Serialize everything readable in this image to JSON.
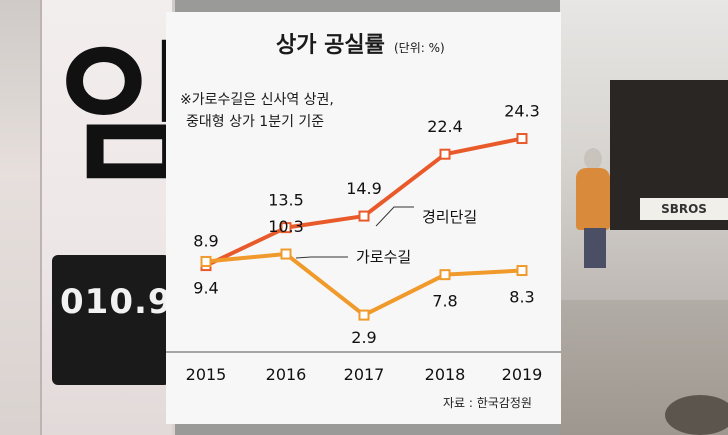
{
  "colors": {
    "series_1": "#e95a2b",
    "series_2": "#f09a2b",
    "marker_fill": "#ffffff",
    "axis": "#555555",
    "panel_bg": "#f7f7f7"
  },
  "background": {
    "poster_number": "010.9",
    "store_sign": "SBROS"
  },
  "chart_data": {
    "type": "line",
    "title": "상가 공실률",
    "unit": "(단위: %)",
    "note_lines": [
      "※가로수길은 신사역 상권,",
      "중대형 상가 1분기 기준"
    ],
    "source": "자료 : 한국감정원",
    "categories": [
      "2015",
      "2016",
      "2017",
      "2018",
      "2019"
    ],
    "series": [
      {
        "name": "경리단길",
        "values": [
          8.9,
          13.5,
          14.9,
          22.4,
          24.3
        ]
      },
      {
        "name": "가로수길",
        "values": [
          9.4,
          10.3,
          2.9,
          7.8,
          8.3
        ]
      }
    ],
    "grid": false,
    "legend": "inline-labels"
  }
}
